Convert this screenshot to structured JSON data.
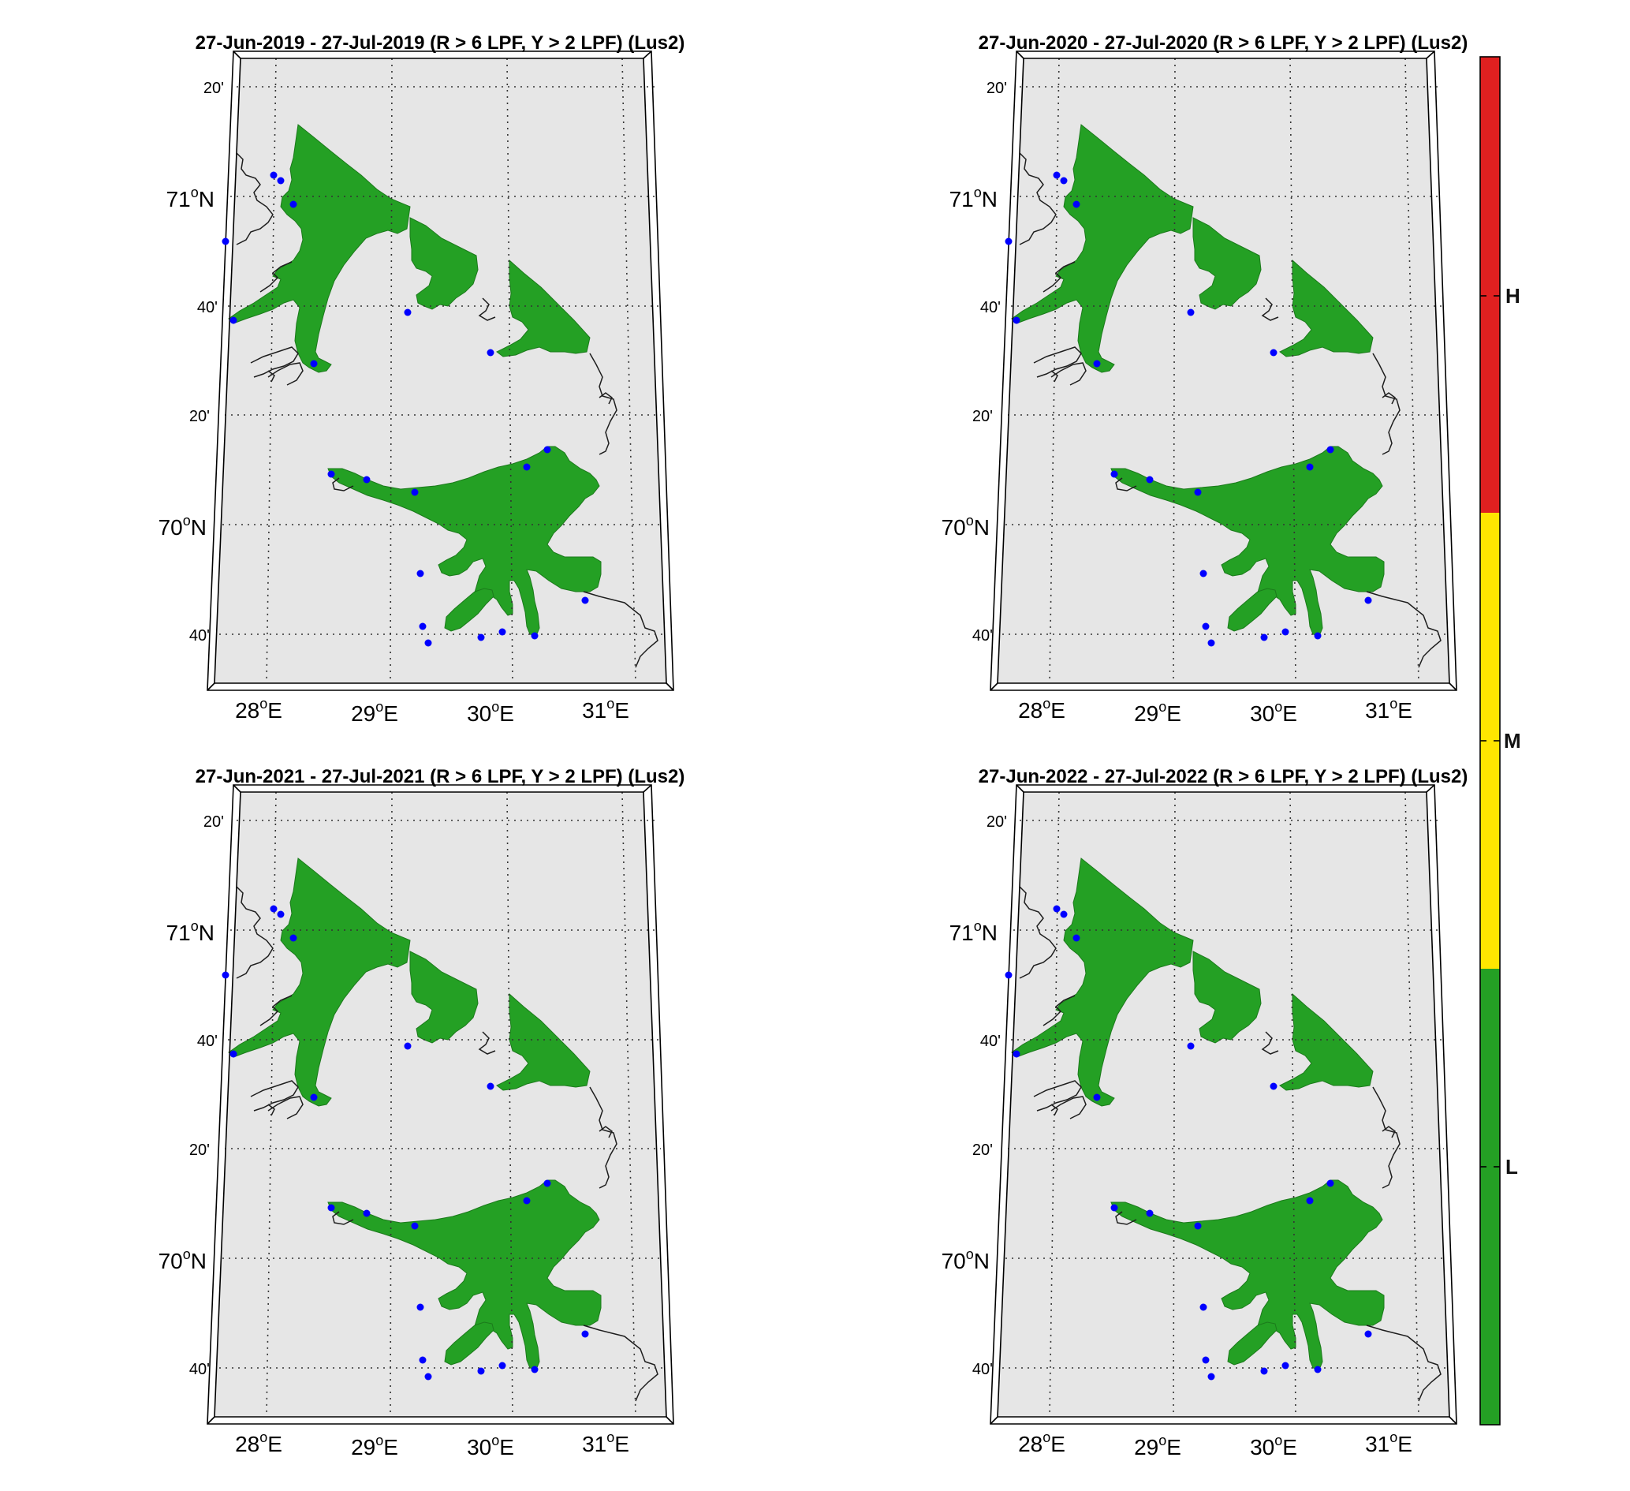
{
  "panels": [
    {
      "id": "2019",
      "title": "27-Jun-2019  - 27-Jul-2019  (R > 6 LPF, Y > 2 LPF) (Lus2)"
    },
    {
      "id": "2020",
      "title": "27-Jun-2020  - 27-Jul-2020  (R > 6 LPF, Y > 2 LPF) (Lus2)"
    },
    {
      "id": "2021",
      "title": "27-Jun-2021  - 27-Jul-2021  (R > 6 LPF, Y > 2 LPF) (Lus2)"
    },
    {
      "id": "2022",
      "title": "27-Jun-2022  - 27-Jul-2022  (R > 6 LPF, Y > 2 LPF) (Lus2)"
    }
  ],
  "axes": {
    "lat_labels": [
      {
        "text": "20'",
        "major": false
      },
      {
        "text": "71",
        "suffix": "N",
        "major": true
      },
      {
        "text": "40'",
        "major": false
      },
      {
        "text": "20'",
        "major": false
      },
      {
        "text": "70",
        "suffix": "N",
        "major": true
      },
      {
        "text": "40'",
        "major": false
      }
    ],
    "lon_labels": [
      {
        "text": "28",
        "suffix": "E"
      },
      {
        "text": "29",
        "suffix": "E"
      },
      {
        "text": "30",
        "suffix": "E"
      },
      {
        "text": "31",
        "suffix": "E"
      }
    ]
  },
  "colorbar": {
    "classes": [
      {
        "label": "H",
        "color": "#e02020"
      },
      {
        "label": "M",
        "color": "#ffe600"
      },
      {
        "label": "L",
        "color": "#24a024"
      }
    ]
  },
  "colors": {
    "land": "#e6e6e6",
    "water_class_L": "#24a024",
    "station": "#0000ff",
    "grid": "#333333"
  }
}
